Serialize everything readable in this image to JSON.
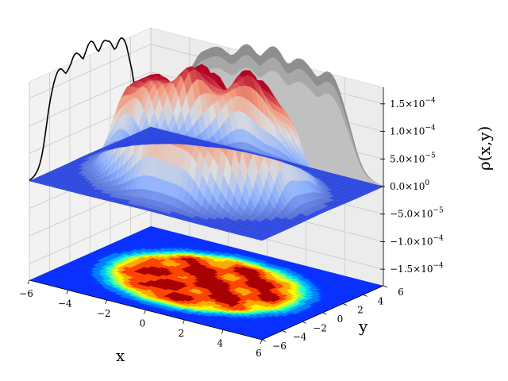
{
  "chart_data": {
    "type": "surface3d",
    "xlabel": "x",
    "ylabel": "y",
    "zlabel": "ρ(x,y)",
    "xlim": [
      -6,
      6
    ],
    "ylim": [
      -6,
      6
    ],
    "zlim": [
      -0.00018,
      0.00018
    ],
    "x_ticks": [
      -6,
      -4,
      -2,
      0,
      2,
      4,
      6
    ],
    "y_ticks": [
      -6,
      -4,
      -2,
      0,
      2,
      4,
      6
    ],
    "x_tick_labels": [
      "−6",
      "−4",
      "−2",
      "0",
      "2",
      "4",
      "6"
    ],
    "y_tick_labels": [
      "−6",
      "−4",
      "−2",
      "0",
      "2",
      "4",
      "6"
    ],
    "z_ticks": [
      {
        "value": 0.00015,
        "mant": "1.5",
        "exp": "−4"
      },
      {
        "value": 0.0001,
        "mant": "1.0",
        "exp": "−4"
      },
      {
        "value": 5e-05,
        "mant": "5.0",
        "exp": "−5"
      },
      {
        "value": 0,
        "mant": "0.0",
        "exp": "0"
      },
      {
        "value": -5e-05,
        "mant": "−5.0",
        "exp": "−5"
      },
      {
        "value": -0.0001,
        "mant": "−1.0",
        "exp": "−4"
      },
      {
        "value": -0.00015,
        "mant": "−1.5",
        "exp": "−4"
      }
    ],
    "tick_base": "×10",
    "surface_colormap": "coolwarm",
    "contour_colormap": "jet",
    "density_peak": 0.00017,
    "support_radius": 5.5,
    "grid": true,
    "colors": {
      "plane": "#2a45e0",
      "projection_line": "#000000",
      "wall_fill": "#c0c0c0",
      "pane": "#ececec"
    }
  }
}
